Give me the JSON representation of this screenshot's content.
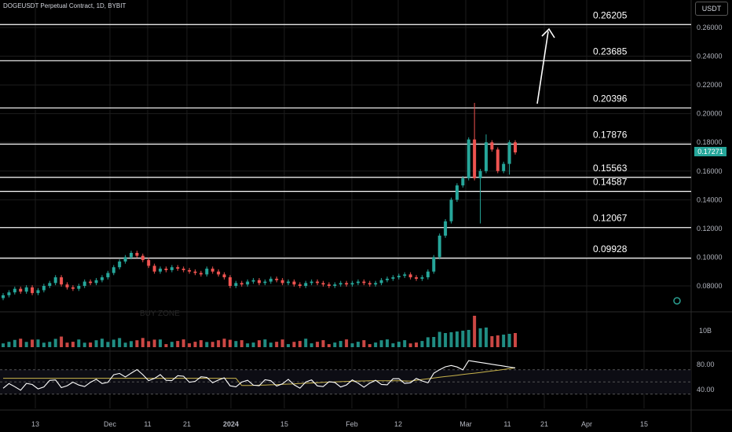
{
  "header": {
    "symbol_title": "DOGEUSDT Perpetual Contract, 1D, BYBIT"
  },
  "toolbar": {
    "currency_label": "USDT"
  },
  "last_price": "0.17271",
  "colors": {
    "up": "#26a69a",
    "down": "#ef5350",
    "grid": "#1c1c1c",
    "fib": "#ffffff",
    "rsi": "#ffffff",
    "rsi_ma": "#c9b44c"
  },
  "chart_data": {
    "type": "candlestick",
    "price_axis": {
      "ticks": [
        "0.26000",
        "0.24000",
        "0.22000",
        "0.20000",
        "0.18000",
        "0.16000",
        "0.14000",
        "0.12000",
        "0.10000",
        "0.08000"
      ],
      "range": [
        0.065,
        0.275
      ]
    },
    "fib_levels": [
      "0.26205",
      "0.23685",
      "0.20396",
      "0.17876",
      "0.15563",
      "0.14587",
      "0.12067",
      "0.09928"
    ],
    "time_axis": [
      "13",
      "Dec",
      "11",
      "21",
      "2024",
      "15",
      "Feb",
      "12",
      "Mar",
      "11",
      "21",
      "Apr",
      "15"
    ],
    "volume_axis": [
      "10B"
    ],
    "rsi_axis": [
      "80.00",
      "40.00"
    ],
    "watermark": "BUY ZONE",
    "projection_arrow": {
      "from": [
        0.2035,
        "Mar 16"
      ],
      "to": [
        0.262,
        "Mar 19"
      ]
    },
    "candles_close_path": [
      0.0735,
      0.0755,
      0.078,
      0.076,
      0.079,
      0.075,
      0.077,
      0.08,
      0.082,
      0.086,
      0.081,
      0.079,
      0.078,
      0.08,
      0.083,
      0.082,
      0.084,
      0.086,
      0.089,
      0.093,
      0.097,
      0.1,
      0.103,
      0.101,
      0.098,
      0.094,
      0.09,
      0.092,
      0.091,
      0.093,
      0.092,
      0.091,
      0.09,
      0.089,
      0.088,
      0.092,
      0.09,
      0.088,
      0.086,
      0.08,
      0.082,
      0.081,
      0.083,
      0.084,
      0.082,
      0.083,
      0.085,
      0.084,
      0.082,
      0.083,
      0.081,
      0.08,
      0.082,
      0.083,
      0.082,
      0.081,
      0.08,
      0.081,
      0.082,
      0.081,
      0.082,
      0.083,
      0.082,
      0.081,
      0.082,
      0.084,
      0.085,
      0.086,
      0.087,
      0.088,
      0.086,
      0.085,
      0.086,
      0.09,
      0.1,
      0.115,
      0.125,
      0.14,
      0.15,
      0.155,
      0.182,
      0.155,
      0.16,
      0.18,
      0.175,
      0.16,
      0.165,
      0.18,
      0.173
    ]
  }
}
